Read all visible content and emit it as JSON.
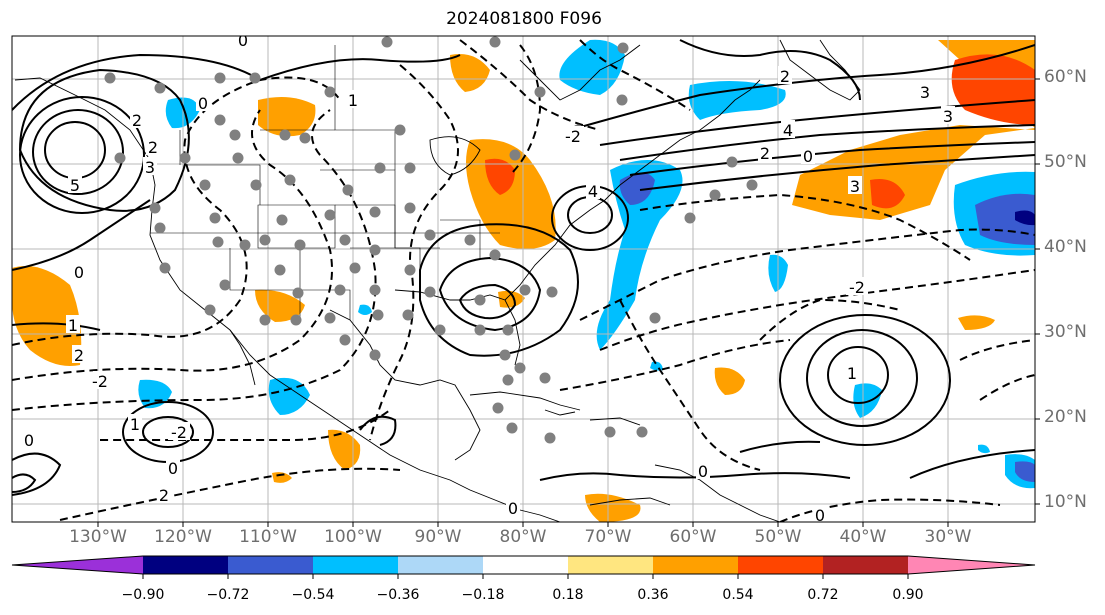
{
  "title": "2024081800 F096",
  "map": {
    "projection": "cylindrical",
    "lon_range": [
      -138,
      -17
    ],
    "lat_range": [
      7.5,
      65
    ],
    "gridlines": true,
    "colors": {
      "coast": "#000000",
      "grid": "#b8b8b8",
      "station_dot": "#808080",
      "contour": "#000000"
    }
  },
  "lat_labels": [
    "60°N",
    "50°N",
    "40°N",
    "30°N",
    "20°N",
    "10°N"
  ],
  "lon_labels": [
    "130°W",
    "120°W",
    "110°W",
    "100°W",
    "90°W",
    "80°W",
    "70°W",
    "60°W",
    "50°W",
    "40°W",
    "30°W"
  ],
  "contour_labels": [
    "0",
    "2",
    "2",
    "3",
    "5",
    "1",
    "0",
    "2",
    "1",
    "-2",
    "0",
    "-2",
    "-2",
    "2",
    "3",
    "4",
    "3",
    "0",
    "1",
    "4",
    "3",
    "2",
    "-2",
    "0",
    "1",
    "2",
    "0",
    "0",
    "0",
    "0"
  ],
  "colorbar": {
    "levels": [
      "−0.90",
      "−0.72",
      "−0.54",
      "−0.36",
      "−0.18",
      "0.18",
      "0.36",
      "0.54",
      "0.72",
      "0.90"
    ],
    "colors": [
      "#9b30d9",
      "#000080",
      "#3a5bd0",
      "#00bfff",
      "#add8f7",
      "#ffffff",
      "#ffe680",
      "#ffa000",
      "#ff4500",
      "#b22222",
      "#ff86b4"
    ],
    "extend": "both"
  }
}
